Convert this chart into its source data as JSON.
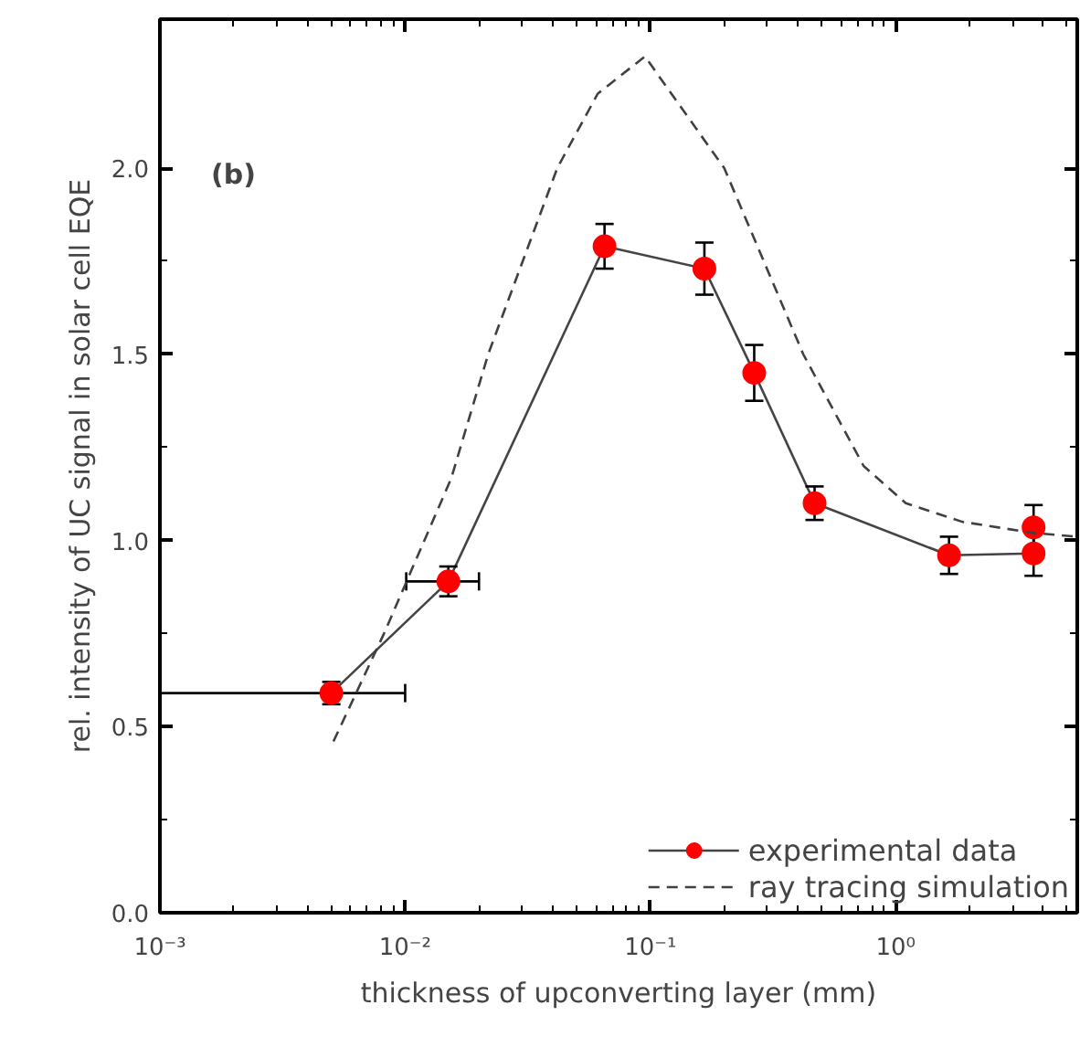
{
  "chart_data": {
    "type": "line",
    "xlabel": "thickness of upconverting layer (mm)",
    "ylabel": "rel. intensity of UC signal in solar cell EQE",
    "log": "x",
    "xlim": [
      0.001,
      5.5
    ],
    "ylim": [
      0,
      2.4
    ],
    "xticks": [
      {
        "value": 0.001,
        "label": "10⁻³"
      },
      {
        "value": 0.01,
        "label": "10⁻²"
      },
      {
        "value": 0.1,
        "label": "10⁻¹"
      },
      {
        "value": 1,
        "label": "10⁰"
      }
    ],
    "yticks": [
      {
        "value": 0,
        "label": "0.0"
      },
      {
        "value": 0.5,
        "label": "0.5"
      },
      {
        "value": 1,
        "label": "1.0"
      },
      {
        "value": 1.5,
        "label": "1.5"
      },
      {
        "value": 2,
        "label": "2.0"
      }
    ],
    "grid": false,
    "legend": "bottom right",
    "annotations": [
      "(b)"
    ],
    "series": [
      {
        "name": "experimental data",
        "marker": "circle",
        "line_style": "solid",
        "color": "#ff0000",
        "x": [
          0.005,
          0.015,
          0.065,
          0.166,
          0.265,
          0.467,
          1.65,
          3.65,
          3.65
        ],
        "values": [
          0.59,
          0.89,
          1.79,
          1.73,
          1.45,
          1.1,
          0.96,
          0.965,
          1.035
        ],
        "errors": [
          0.03,
          0.04,
          0.06,
          0.07,
          0.075,
          0.045,
          0.05,
          0.06,
          0.06
        ],
        "xerrors": [
          [
            0.001,
            0.01
          ],
          [
            0.0101,
            0.02
          ],
          null,
          null,
          null,
          null,
          null,
          null,
          null
        ]
      },
      {
        "name": "ray tracing simulation",
        "marker": "none",
        "line_style": "dashed",
        "color": "#404040",
        "x": [
          0.0051,
          0.0082,
          0.0154,
          0.0218,
          0.0417,
          0.061,
          0.095,
          0.2,
          0.42,
          0.74,
          1.1,
          1.87,
          3.65,
          5.5
        ],
        "values": [
          0.46,
          0.75,
          1.166,
          1.5,
          2.0,
          2.2,
          2.3,
          2.0,
          1.5,
          1.2,
          1.1,
          1.05,
          1.02,
          1.01
        ]
      }
    ]
  }
}
